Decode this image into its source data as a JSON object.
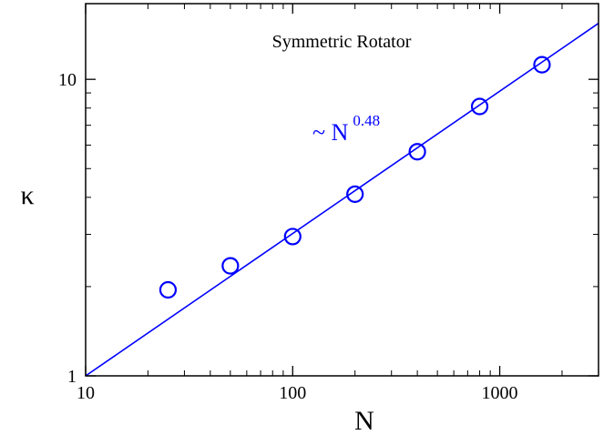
{
  "chart_data": {
    "type": "scatter",
    "title": "Symmetric Rotator",
    "xlabel": "N",
    "ylabel": "κ",
    "x_scale": "log",
    "y_scale": "log",
    "xlim": [
      10,
      3000
    ],
    "ylim": [
      1,
      18
    ],
    "x_ticks": [
      {
        "value": 10,
        "label": "10"
      },
      {
        "value": 100,
        "label": "100"
      },
      {
        "value": 1000,
        "label": "1000"
      }
    ],
    "y_ticks": [
      {
        "value": 1,
        "label": "1"
      },
      {
        "value": 10,
        "label": "10"
      }
    ],
    "grid": false,
    "series": [
      {
        "marker": "open-circle",
        "color": "#0000ff",
        "x": [
          25,
          50,
          100,
          200,
          400,
          800,
          1600
        ],
        "y": [
          1.95,
          2.35,
          2.95,
          4.1,
          5.7,
          8.1,
          11.2
        ]
      }
    ],
    "fit": {
      "color": "#0000ff",
      "label_prefix": "~ N",
      "exponent": "0.48",
      "coefficient": 1.0
    }
  }
}
